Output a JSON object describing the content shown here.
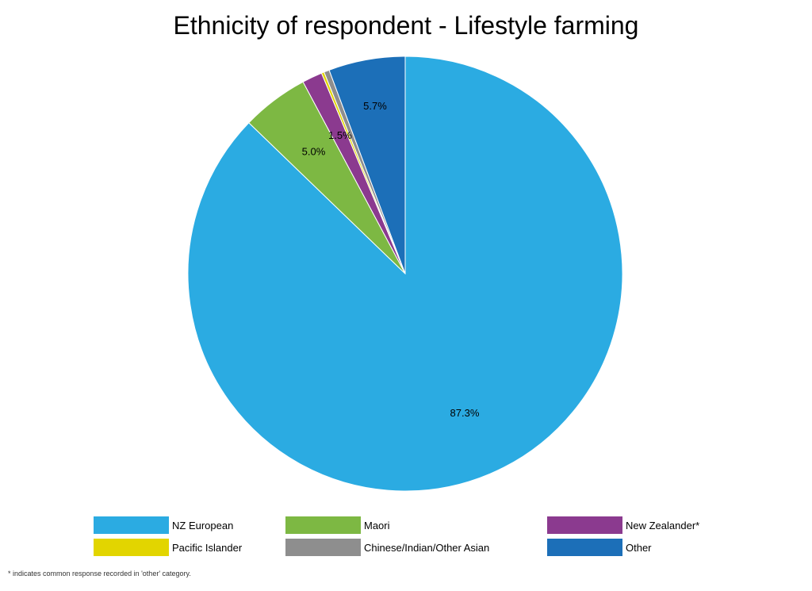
{
  "chart_data": {
    "type": "pie",
    "title": "Ethnicity of respondent - Lifestyle farming",
    "slices": [
      {
        "name": "NZ European",
        "value": 87.3,
        "label": "87.3%",
        "color": "#2BABE2"
      },
      {
        "name": "Maori",
        "value": 5.0,
        "label": "5.0%",
        "color": "#7DB843"
      },
      {
        "name": "New Zealander*",
        "value": 1.5,
        "label": "1.5%",
        "color": "#8B3A8F"
      },
      {
        "name": "Pacific Islander",
        "value": 0.2,
        "label": "",
        "color": "#E2D500"
      },
      {
        "name": "Chinese/Indian/Other Asian",
        "value": 0.4,
        "label": "",
        "color": "#8E8E8E"
      },
      {
        "name": "Other",
        "value": 5.7,
        "label": "5.7%",
        "color": "#1C6FB8"
      }
    ],
    "legend_position": "bottom"
  },
  "footnote": "* indicates common response recorded in 'other' category."
}
